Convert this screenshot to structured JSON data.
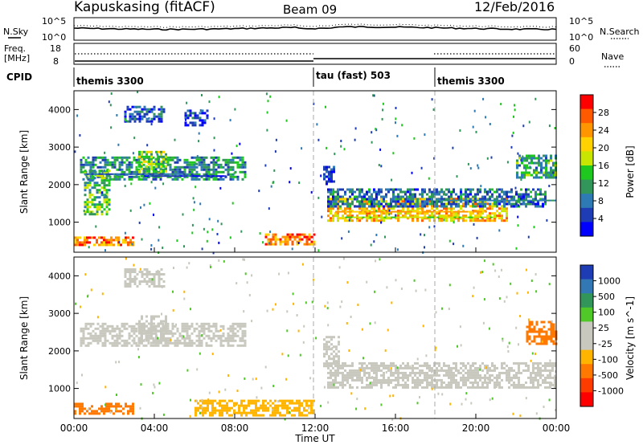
{
  "header": {
    "station": "Kapuskasing (fitACF)",
    "beam": "Beam 09",
    "date": "12/Feb/2016"
  },
  "noise_panel": {
    "left_label": "N.Sky",
    "left_ticks": [
      "10^5",
      "10^0"
    ],
    "right_label": "N.Search",
    "right_ticks": [
      "10^5",
      "10^0"
    ]
  },
  "freq_panel": {
    "left_label_1": "Freq.",
    "left_label_2": "[MHz]",
    "left_ticks": [
      "18",
      "8"
    ],
    "right_label": "Nave",
    "right_ticks": [
      "60",
      "0"
    ]
  },
  "cpid": {
    "label": "CPID",
    "segments": [
      {
        "start_ut": "00:00",
        "name": "themis 3300"
      },
      {
        "start_ut": "12:00",
        "name": "tau (fast) 503"
      },
      {
        "start_ut": "18:00",
        "name": "themis 3300"
      }
    ]
  },
  "power_colorbar": {
    "label": "Power [dB]",
    "ticks": [
      "28",
      "24",
      "20",
      "16",
      "12",
      "8",
      "4"
    ],
    "colors": [
      "#ff0000",
      "#ff5a00",
      "#ff9600",
      "#ffd200",
      "#c8e600",
      "#1ec81e",
      "#32965a",
      "#2d7ab4",
      "#1e3cb4",
      "#0000ff"
    ]
  },
  "velocity_colorbar": {
    "label": "Velocity [m s^-1]",
    "ticks": [
      "1000",
      "500",
      "100",
      "25",
      "-25",
      "-100",
      "-500",
      "-1000"
    ],
    "colors": [
      "#1e3cb4",
      "#3278b4",
      "#32965a",
      "#50c828",
      "#c8c8be",
      "#c8c8be",
      "#ffb400",
      "#ff7800",
      "#ff3c00",
      "#ff0000"
    ]
  },
  "chart_data": [
    {
      "type": "heatmap",
      "name": "power",
      "xlabel": "Time UT",
      "ylabel": "Slant Range [km]",
      "xlim": [
        0,
        24
      ],
      "ylim": [
        200,
        4500
      ],
      "yticks": [
        1000,
        2000,
        3000,
        4000
      ],
      "blobs": [
        {
          "t0": 0.0,
          "t1": 3.0,
          "r0": 380,
          "r1": 620,
          "level": 24
        },
        {
          "t0": 9.5,
          "t1": 12.0,
          "r0": 400,
          "r1": 700,
          "level": 25
        },
        {
          "t0": 0.3,
          "t1": 8.5,
          "r0": 2150,
          "r1": 2750,
          "level": 11
        },
        {
          "t0": 3.2,
          "t1": 4.6,
          "r0": 2200,
          "r1": 2900,
          "level": 16
        },
        {
          "t0": 0.5,
          "t1": 1.8,
          "r0": 1200,
          "r1": 2400,
          "level": 14
        },
        {
          "t0": 2.5,
          "t1": 4.5,
          "r0": 3700,
          "r1": 4100,
          "level": 7
        },
        {
          "t0": 5.5,
          "t1": 6.6,
          "r0": 3600,
          "r1": 4000,
          "level": 7
        },
        {
          "t0": 12.6,
          "t1": 21.5,
          "r0": 1050,
          "r1": 1650,
          "level": 21
        },
        {
          "t0": 12.6,
          "t1": 23.5,
          "r0": 1450,
          "r1": 1900,
          "level": 9
        },
        {
          "t0": 22.0,
          "t1": 24.0,
          "r0": 2200,
          "r1": 2800,
          "level": 12
        },
        {
          "t0": 12.4,
          "t1": 13.0,
          "r0": 2000,
          "r1": 2500,
          "level": 6
        }
      ],
      "rows": [
        {
          "t0": 0.5,
          "t1": 5.5,
          "r": 2300,
          "level": 8
        },
        {
          "t0": 3.5,
          "t1": 7.5,
          "r": 2250,
          "level": 6
        },
        {
          "t0": 13.0,
          "t1": 20.5,
          "r": 1300,
          "level": 22
        },
        {
          "t0": 13.5,
          "t1": 21.0,
          "r": 1150,
          "level": 17
        },
        {
          "t0": 18.0,
          "t1": 24.0,
          "r": 1600,
          "level": 10
        }
      ]
    },
    {
      "type": "heatmap",
      "name": "velocity",
      "xlabel": "Time UT",
      "ylabel": "Slant Range [km]",
      "xlim": [
        0,
        24
      ],
      "ylim": [
        200,
        4500
      ],
      "yticks": [
        1000,
        2000,
        3000,
        4000
      ],
      "xticks": [
        "00:00",
        "04:00",
        "08:00",
        "12:00",
        "16:00",
        "20:00",
        "00:00"
      ],
      "blobs": [
        {
          "t0": 0.3,
          "t1": 8.5,
          "r0": 2150,
          "r1": 2750,
          "value": 0
        },
        {
          "t0": 3.2,
          "t1": 4.6,
          "r0": 2200,
          "r1": 2950,
          "value": 0
        },
        {
          "t0": 2.5,
          "t1": 4.5,
          "r0": 3700,
          "r1": 4200,
          "value": 0
        },
        {
          "t0": 0.0,
          "t1": 3.0,
          "r0": 350,
          "r1": 620,
          "value": -200
        },
        {
          "t0": 6.0,
          "t1": 12.0,
          "r0": 300,
          "r1": 700,
          "value": -60
        },
        {
          "t0": 12.6,
          "t1": 24.0,
          "r0": 1050,
          "r1": 1700,
          "value": 0
        },
        {
          "t0": 12.4,
          "t1": 13.2,
          "r0": 1600,
          "r1": 2400,
          "value": 0
        },
        {
          "t0": 22.5,
          "t1": 24.0,
          "r0": 2200,
          "r1": 2800,
          "value": -300
        }
      ]
    }
  ],
  "axis": {
    "xlabel": "Time UT",
    "xticks": [
      "00:00",
      "04:00",
      "08:00",
      "12:00",
      "16:00",
      "20:00",
      "00:00"
    ]
  }
}
